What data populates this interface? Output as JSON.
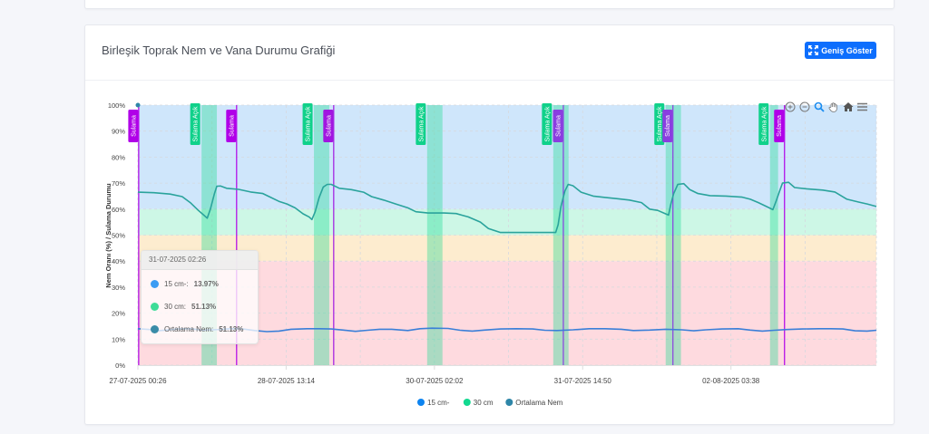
{
  "card": {
    "title": "Birleşik Toprak Nem ve Vana Durumu Grafiği",
    "expand_button_label": "Geniş Göster",
    "expand_icon": "expand-arrows-icon"
  },
  "toolbar": {
    "icons": [
      "zoom-in-icon",
      "zoom-out-icon",
      "selection-zoom-icon",
      "pan-hand-icon",
      "reset-home-icon",
      "menu-icon"
    ]
  },
  "tooltip": {
    "title": "31-07-2025 02:26",
    "rows": [
      {
        "label": "15 cm-:",
        "value": "13.97%",
        "color": "#3b9cf3"
      },
      {
        "label": "30 cm:",
        "value": "51.13%",
        "color": "#3ddc97"
      },
      {
        "label": "Ortalama Nem:",
        "value": "51.13%",
        "color": "#3a8ca8"
      }
    ]
  },
  "chart_data": {
    "type": "line",
    "title": "Birleşik Toprak Nem ve Vana Durumu Grafiği",
    "ylabel": "Nem Oranı (%) / Sulama Durumu",
    "xlabel": "",
    "x_unit": "hours since 27-07-2025 00:26",
    "xlim": [
      0,
      183.3
    ],
    "ylim": [
      0,
      100
    ],
    "y_ticks": [
      "0%",
      "10%",
      "20%",
      "30%",
      "40%",
      "50%",
      "60%",
      "70%",
      "80%",
      "90%",
      "100%"
    ],
    "x_ticks": [
      {
        "x": 0,
        "label": "27-07-2025 00:26"
      },
      {
        "x": 36.8,
        "label": "28-07-2025 13:14"
      },
      {
        "x": 73.6,
        "label": "30-07-2025 02:02"
      },
      {
        "x": 110.4,
        "label": "31-07-2025 14:50"
      },
      {
        "x": 147.2,
        "label": "02-08-2025 03:38"
      }
    ],
    "grid": true,
    "legend_position": "bottom-center",
    "legend": [
      {
        "name": "15 cm-",
        "color": "#0d84f0"
      },
      {
        "name": "30 cm",
        "color": "#13d990"
      },
      {
        "name": "Ortalama Nem",
        "color": "#2e86a8"
      }
    ],
    "bands": [
      {
        "from": 60,
        "to": 100,
        "color": "#cfe6fb"
      },
      {
        "from": 50,
        "to": 60,
        "color": "#cdf7e6"
      },
      {
        "from": 40,
        "to": 50,
        "color": "#fdeccf"
      },
      {
        "from": 0,
        "to": 40,
        "color": "#fedadf"
      }
    ],
    "irrigation_on_ranges": {
      "label": "Sulama Açık",
      "color": "#10d98c",
      "ranges": [
        [
          15.8,
          19.6
        ],
        [
          43.7,
          47.5
        ],
        [
          71.8,
          75.6
        ],
        [
          103.1,
          106.9
        ],
        [
          131.0,
          134.8
        ],
        [
          156.9,
          158.9
        ]
      ]
    },
    "irrigation_events": {
      "label": "Sulama",
      "colors": [
        "#b000e8",
        "#a116e0",
        "#8a3ee0"
      ],
      "x": [
        0.2,
        24.5,
        48.6,
        105.6,
        132.8,
        160.5
      ]
    },
    "series": [
      {
        "name": "30 cm",
        "color": "#2aa39c",
        "points": [
          [
            0,
            66.5
          ],
          [
            4,
            66.3
          ],
          [
            8,
            65.8
          ],
          [
            11,
            64.8
          ],
          [
            13,
            62.5
          ],
          [
            15,
            59.5
          ],
          [
            16.5,
            57.5
          ],
          [
            17.2,
            56.5
          ],
          [
            18,
            60
          ],
          [
            19,
            66
          ],
          [
            19.6,
            68.8
          ],
          [
            20.5,
            68.9
          ],
          [
            22,
            68
          ],
          [
            25,
            67.6
          ],
          [
            28,
            66.6
          ],
          [
            31,
            66
          ],
          [
            33,
            64.5
          ],
          [
            35,
            63
          ],
          [
            37,
            62
          ],
          [
            39,
            60.5
          ],
          [
            41,
            58.2
          ],
          [
            42.5,
            57
          ],
          [
            43.2,
            56
          ],
          [
            44,
            59
          ],
          [
            45,
            64.5
          ],
          [
            46,
            68.5
          ],
          [
            47,
            69.5
          ],
          [
            48,
            69.5
          ],
          [
            50,
            68
          ],
          [
            53,
            67.5
          ],
          [
            56,
            66.5
          ],
          [
            58,
            64.8
          ],
          [
            61,
            63.5
          ],
          [
            64,
            62
          ],
          [
            67,
            60.5
          ],
          [
            69,
            59
          ],
          [
            72,
            58.5
          ],
          [
            76,
            58.5
          ],
          [
            79,
            58.3
          ],
          [
            82,
            57
          ],
          [
            85,
            55
          ],
          [
            87,
            52.5
          ],
          [
            90,
            51
          ],
          [
            95,
            51
          ],
          [
            101,
            51
          ],
          [
            103.7,
            51
          ],
          [
            104.3,
            54
          ],
          [
            105,
            61
          ],
          [
            106,
            67
          ],
          [
            106.8,
            69.5
          ],
          [
            108,
            69
          ],
          [
            110,
            66.5
          ],
          [
            113,
            65
          ],
          [
            116,
            64.5
          ],
          [
            119,
            64
          ],
          [
            122,
            63.5
          ],
          [
            125,
            62.5
          ],
          [
            127,
            60
          ],
          [
            129,
            59.5
          ],
          [
            131,
            58.2
          ],
          [
            131.7,
            57.7
          ],
          [
            132.3,
            62
          ],
          [
            133,
            66
          ],
          [
            134,
            69.5
          ],
          [
            135.5,
            69.8
          ],
          [
            137,
            67.5
          ],
          [
            139,
            66
          ],
          [
            142,
            65.2
          ],
          [
            146,
            65
          ],
          [
            150,
            64.6
          ],
          [
            152,
            63.8
          ],
          [
            154,
            62.5
          ],
          [
            156,
            61
          ],
          [
            157.6,
            59.8
          ],
          [
            158.4,
            63
          ],
          [
            159.3,
            67
          ],
          [
            160,
            70
          ],
          [
            161.5,
            70.3
          ],
          [
            163,
            68.3
          ],
          [
            166,
            67.8
          ],
          [
            170,
            67.3
          ],
          [
            173,
            66.6
          ],
          [
            176,
            63.8
          ],
          [
            179,
            62.7
          ],
          [
            181,
            62
          ],
          [
            183.3,
            61
          ]
        ]
      },
      {
        "name": "15 cm-",
        "color": "#3a7fd8",
        "points": [
          [
            0,
            14
          ],
          [
            3,
            13.7
          ],
          [
            5,
            13.2
          ],
          [
            7,
            13.5
          ],
          [
            10,
            13.9
          ],
          [
            13,
            14
          ],
          [
            16,
            13.5
          ],
          [
            20,
            13.7
          ],
          [
            23,
            14
          ],
          [
            26,
            13.9
          ],
          [
            29,
            13.3
          ],
          [
            32,
            12.9
          ],
          [
            35,
            13.1
          ],
          [
            38,
            13.8
          ],
          [
            42,
            14
          ],
          [
            45,
            14
          ],
          [
            48,
            13.9
          ],
          [
            51,
            13.5
          ],
          [
            54,
            13
          ],
          [
            57,
            13.4
          ],
          [
            60,
            13.8
          ],
          [
            63,
            13.8
          ],
          [
            67,
            13.3
          ],
          [
            70,
            14
          ],
          [
            73,
            14.2
          ],
          [
            77,
            14.1
          ],
          [
            80,
            13.4
          ],
          [
            83,
            13.1
          ],
          [
            86,
            13.5
          ],
          [
            90,
            13.9
          ],
          [
            94,
            14
          ],
          [
            98,
            13.9
          ],
          [
            101,
            13.4
          ],
          [
            104,
            13.3
          ],
          [
            108,
            13.6
          ],
          [
            112,
            14
          ],
          [
            116,
            14
          ],
          [
            120,
            13.8
          ],
          [
            123,
            13.3
          ],
          [
            127,
            13.5
          ],
          [
            131,
            13.8
          ],
          [
            135,
            13.6
          ],
          [
            138,
            13.2
          ],
          [
            141,
            13.6
          ],
          [
            145,
            13.9
          ],
          [
            149,
            14
          ],
          [
            152,
            13.5
          ],
          [
            155,
            13.1
          ],
          [
            158,
            13.4
          ],
          [
            161,
            13.7
          ],
          [
            165,
            13.9
          ],
          [
            169,
            14
          ],
          [
            172,
            14
          ],
          [
            175,
            13.9
          ],
          [
            178,
            13.2
          ],
          [
            181,
            13.1
          ],
          [
            183.3,
            13.4
          ]
        ]
      }
    ]
  }
}
